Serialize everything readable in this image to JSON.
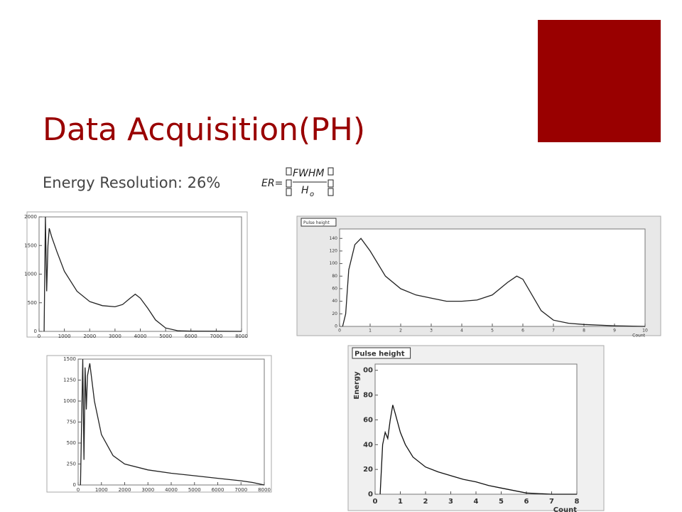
{
  "slide": {
    "title": "Data Acquisition(PH)",
    "subtitle": "Energy Resolution: 26%",
    "formula": {
      "lhs": "ER=",
      "numerator": "FWHM",
      "denominator": "H",
      "subscript": "o"
    }
  },
  "chart_data": [
    {
      "type": "line",
      "xlim": [
        0,
        8000
      ],
      "xticks": [
        0,
        1000,
        2000,
        3000,
        4000,
        5000,
        6000,
        7000,
        8000
      ],
      "ylim": [
        0,
        2000
      ],
      "yticks": [
        0,
        500,
        1000,
        1500,
        2000
      ],
      "x": [
        200,
        250,
        300,
        350,
        400,
        500,
        700,
        1000,
        1500,
        2000,
        2500,
        3000,
        3300,
        3600,
        3800,
        4000,
        4300,
        4600,
        5000,
        5500,
        6000,
        7000,
        8000
      ],
      "series": [
        {
          "color": "#222222",
          "values": [
            0,
            2000,
            700,
            1500,
            1800,
            1650,
            1400,
            1050,
            700,
            520,
            450,
            430,
            470,
            580,
            650,
            580,
            400,
            200,
            60,
            10,
            5,
            2,
            0
          ]
        }
      ]
    },
    {
      "type": "line",
      "title": "Pulse height",
      "xlabel": "Count",
      "xlim": [
        0,
        10
      ],
      "xticks": [
        0,
        1,
        2,
        3,
        4,
        5,
        6,
        7,
        8,
        9,
        10
      ],
      "ylim": [
        0,
        155
      ],
      "yticks": [
        0,
        20,
        40,
        60,
        80,
        100,
        120,
        140
      ],
      "x": [
        0.1,
        0.2,
        0.3,
        0.5,
        0.7,
        1,
        1.5,
        2,
        2.5,
        3,
        3.5,
        4,
        4.5,
        5,
        5.5,
        5.8,
        6,
        6.3,
        6.6,
        7,
        7.5,
        8,
        9,
        10
      ],
      "series": [
        {
          "color": "#222222",
          "values": [
            0,
            20,
            90,
            130,
            140,
            120,
            80,
            60,
            50,
            45,
            40,
            40,
            42,
            50,
            70,
            80,
            75,
            50,
            25,
            10,
            5,
            3,
            1,
            0
          ]
        }
      ]
    },
    {
      "type": "line",
      "xlim": [
        0,
        8000
      ],
      "xticks": [
        0,
        1000,
        2000,
        3000,
        4000,
        5000,
        6000,
        7000,
        8000
      ],
      "ylim": [
        0,
        1500
      ],
      "yticks": [
        0,
        250,
        500,
        750,
        1000,
        1250,
        1500
      ],
      "x": [
        100,
        200,
        250,
        300,
        350,
        400,
        500,
        700,
        1000,
        1500,
        2000,
        3000,
        4000,
        5000,
        6000,
        7000,
        7500,
        8000
      ],
      "series": [
        {
          "color": "#222222",
          "values": [
            0,
            1500,
            300,
            1400,
            900,
            1300,
            1450,
            1000,
            600,
            350,
            250,
            180,
            140,
            110,
            80,
            50,
            30,
            0
          ]
        }
      ]
    },
    {
      "type": "line",
      "title": "Pulse height",
      "xlabel": "Count",
      "ylabel": "Energy",
      "xlim": [
        0,
        8
      ],
      "xticks": [
        0,
        1,
        2,
        3,
        4,
        5,
        6,
        7,
        8
      ],
      "ylim": [
        0,
        105
      ],
      "yticks": [
        0,
        20,
        40,
        60,
        80,
        {
          "value": 100,
          "label": "00"
        }
      ],
      "x": [
        0.2,
        0.3,
        0.4,
        0.5,
        0.6,
        0.7,
        0.8,
        1,
        1.2,
        1.5,
        2,
        2.5,
        3,
        3.5,
        4,
        4.5,
        5,
        5.5,
        6,
        7,
        8
      ],
      "series": [
        {
          "color": "#111111",
          "values": [
            0,
            40,
            50,
            45,
            60,
            72,
            65,
            50,
            40,
            30,
            22,
            18,
            15,
            12,
            10,
            7,
            5,
            3,
            1,
            0,
            0
          ]
        }
      ]
    }
  ]
}
